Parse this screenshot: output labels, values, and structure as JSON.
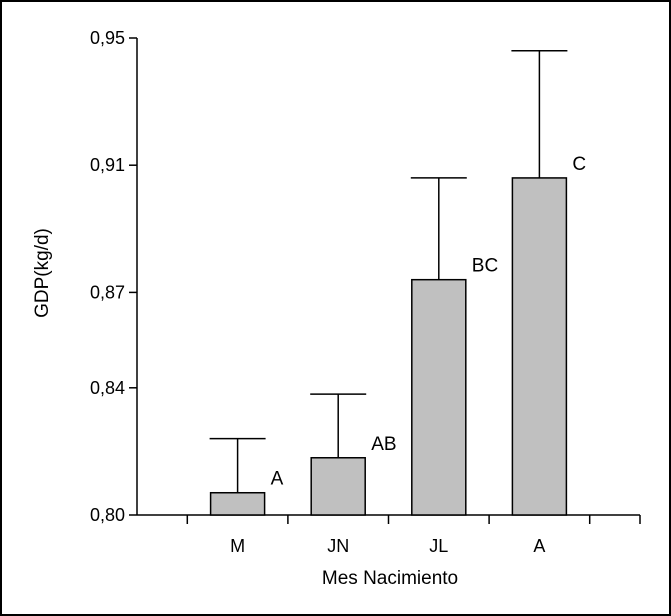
{
  "chart_data": {
    "type": "bar",
    "title": "",
    "xlabel": "Mes Nacimiento",
    "ylabel": "GDP(kg/d)",
    "categories": [
      "M",
      "JN",
      "JL",
      "A"
    ],
    "values": [
      0.807,
      0.818,
      0.874,
      0.906
    ],
    "error_upper": [
      0.824,
      0.838,
      0.906,
      0.946
    ],
    "group_labels": [
      "A",
      "AB",
      "BC",
      "C"
    ],
    "y_ticks": [
      "0,80",
      "0,84",
      "0,87",
      "0,91",
      "0,95"
    ],
    "y_tick_values": [
      0.8,
      0.84,
      0.87,
      0.91,
      0.95
    ],
    "ylim": [
      0.8,
      0.95
    ],
    "grid": false,
    "bar_color": "#c0c0c0",
    "bar_edge_color": "#000000"
  }
}
